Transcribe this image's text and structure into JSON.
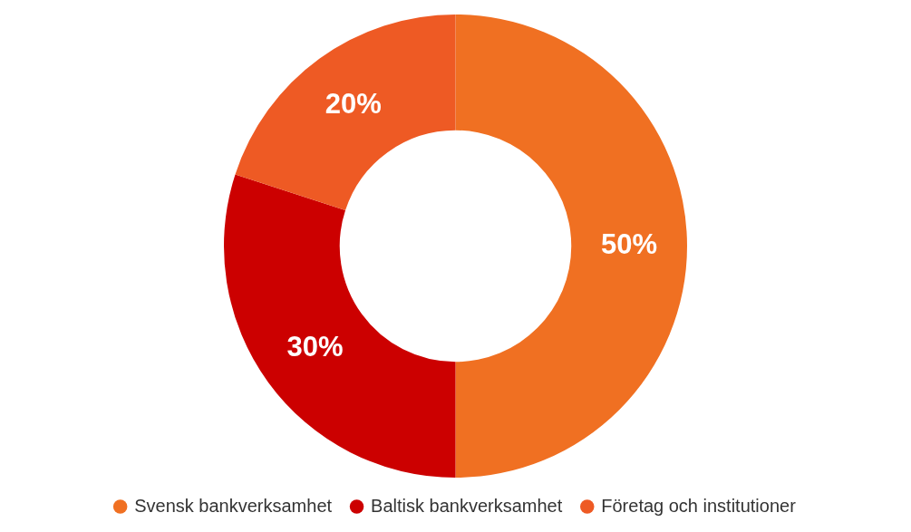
{
  "chart_data": {
    "type": "donut",
    "categories": [
      "Svensk bankverksamhet",
      "Baltisk bankverksamhet",
      "Företag och institutioner"
    ],
    "values": [
      50,
      30,
      20
    ],
    "colors": [
      "#f07022",
      "#cc0000",
      "#ee5a24"
    ],
    "value_labels": [
      "50%",
      "30%",
      "20%"
    ],
    "legend": "bottom"
  }
}
